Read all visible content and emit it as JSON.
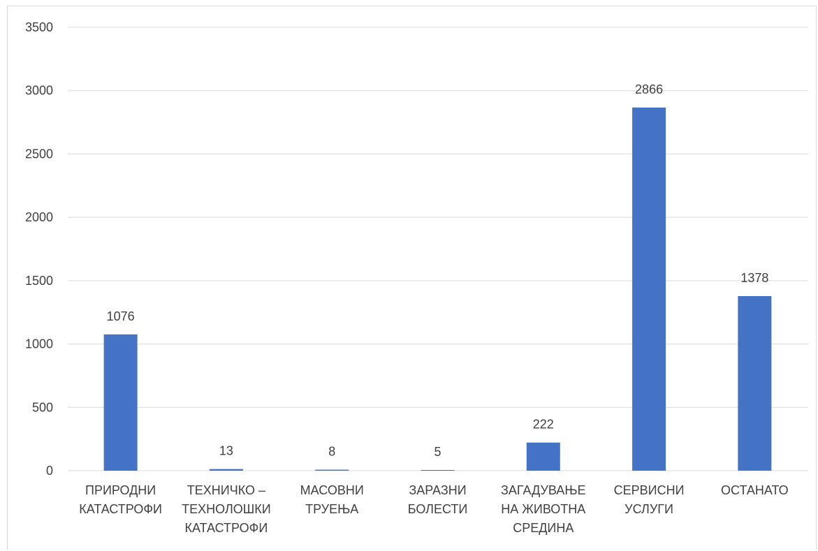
{
  "chart_data": {
    "type": "bar",
    "categories": [
      [
        "ПРИРОДНИ",
        "КАТАСТРОФИ"
      ],
      [
        "ТЕХНИЧКО –",
        "ТЕХНОЛОШКИ",
        "КАТАСТРОФИ"
      ],
      [
        "МАСОВНИ",
        "ТРУЕЊА"
      ],
      [
        "ЗАРАЗНИ",
        "БОЛЕСТИ"
      ],
      [
        "ЗАГАДУВАЊЕ",
        "НА ЖИВОТНА",
        "СРЕДИНА"
      ],
      [
        "СЕРВИСНИ",
        "УСЛУГИ"
      ],
      [
        "ОСТАНАТО"
      ]
    ],
    "values": [
      1076,
      13,
      8,
      5,
      222,
      2866,
      1378
    ],
    "ylim": [
      0,
      3500
    ],
    "yticks": [
      0,
      500,
      1000,
      1500,
      2000,
      2500,
      3000,
      3500
    ],
    "grid": true,
    "legend": "none",
    "data_labels": true,
    "bar_color": "#4472c4",
    "title": "",
    "xlabel": "",
    "ylabel": ""
  }
}
